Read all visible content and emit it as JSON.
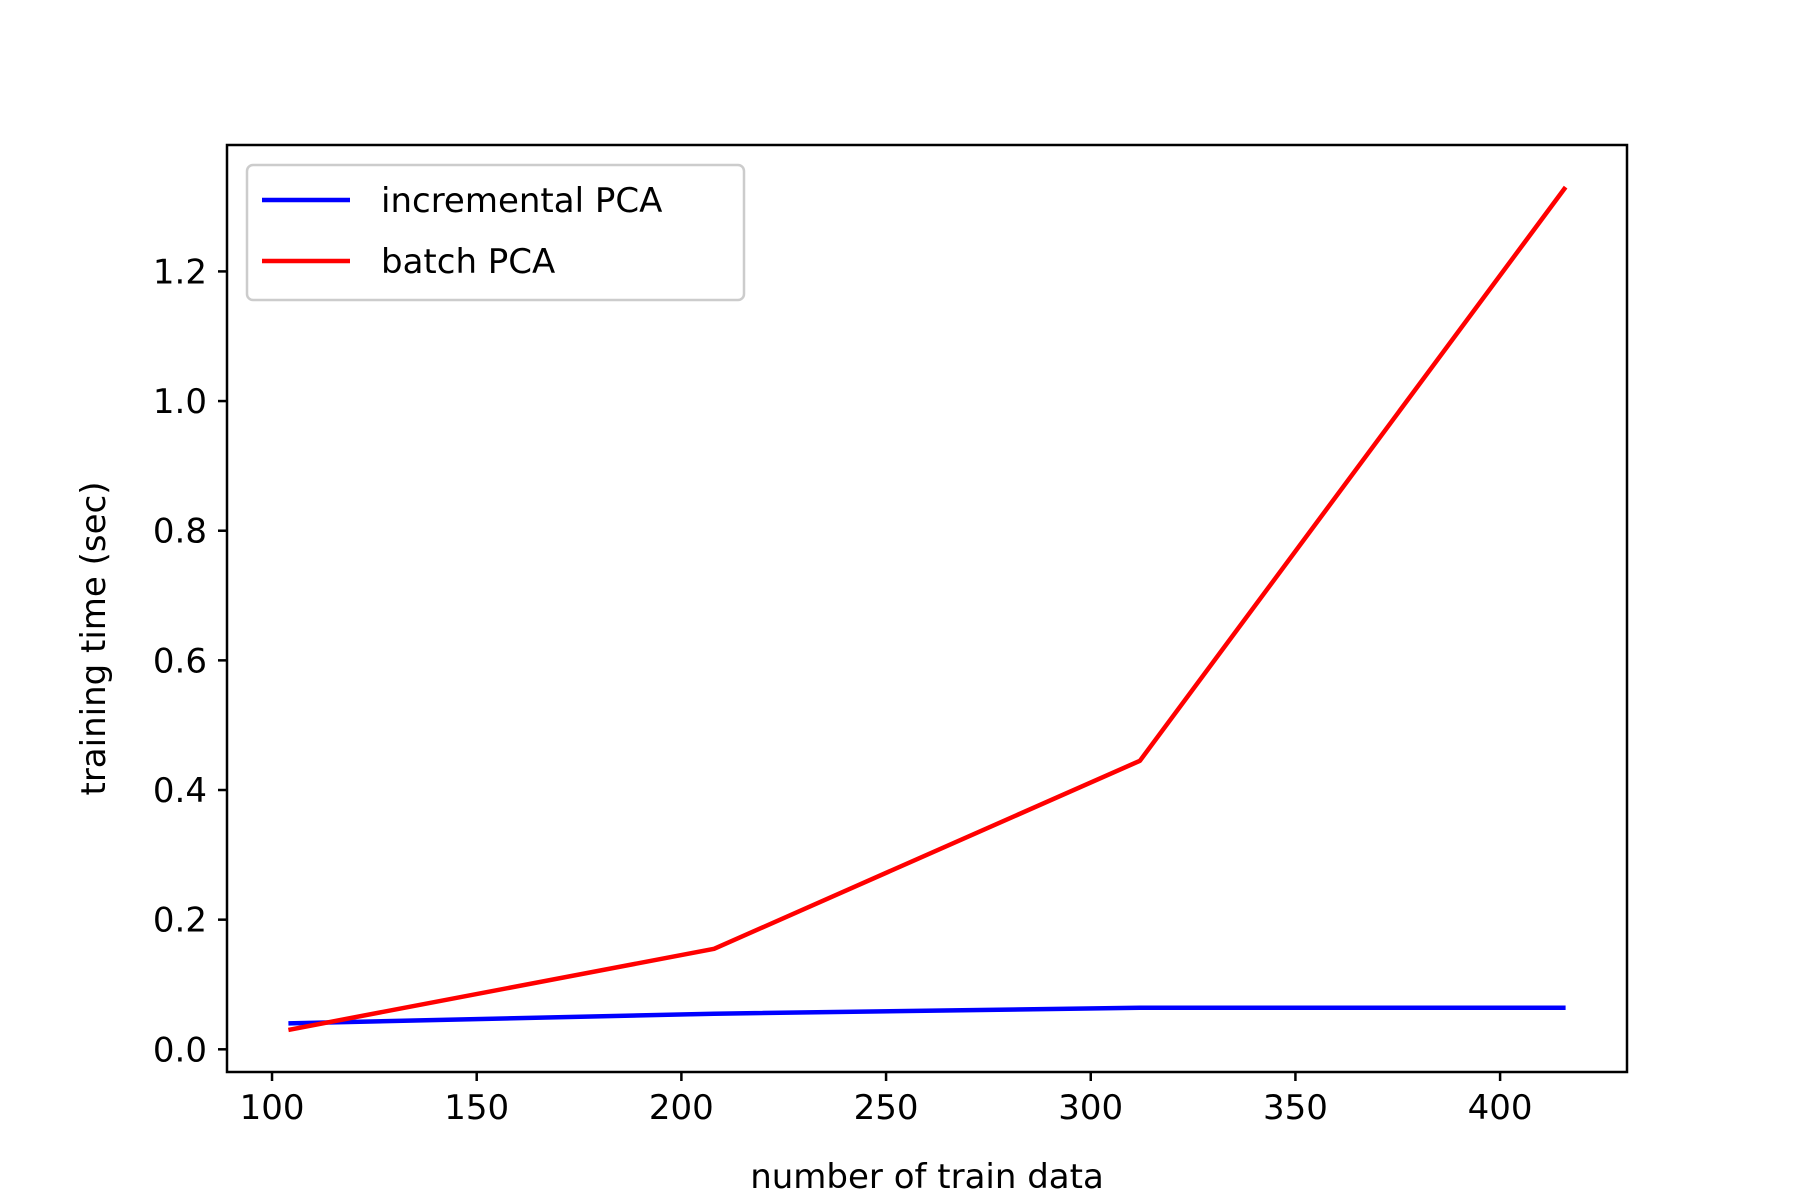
{
  "chart_data": {
    "type": "line",
    "title": "",
    "xlabel": "number of train data",
    "ylabel": "training time (sec)",
    "xlim": [
      89,
      431
    ],
    "ylim": [
      -0.035,
      1.395
    ],
    "xticks": [
      {
        "value": 100,
        "label": "100"
      },
      {
        "value": 150,
        "label": "150"
      },
      {
        "value": 200,
        "label": "200"
      },
      {
        "value": 250,
        "label": "250"
      },
      {
        "value": 300,
        "label": "300"
      },
      {
        "value": 350,
        "label": "350"
      },
      {
        "value": 400,
        "label": "400"
      }
    ],
    "yticks": [
      {
        "value": 0.0,
        "label": "0.0"
      },
      {
        "value": 0.2,
        "label": "0.2"
      },
      {
        "value": 0.4,
        "label": "0.4"
      },
      {
        "value": 0.6,
        "label": "0.6"
      },
      {
        "value": 0.8,
        "label": "0.8"
      },
      {
        "value": 1.0,
        "label": "1.0"
      },
      {
        "value": 1.2,
        "label": "1.2"
      }
    ],
    "grid": false,
    "legend_position": "upper-left",
    "series": [
      {
        "name": "incremental PCA",
        "color": "#0000ff",
        "x": [
          104,
          208,
          312,
          416
        ],
        "y": [
          0.04,
          0.055,
          0.064,
          0.064
        ]
      },
      {
        "name": "batch PCA",
        "color": "#ff0000",
        "x": [
          104,
          208,
          312,
          416
        ],
        "y": [
          0.03,
          0.155,
          0.445,
          1.33
        ]
      }
    ]
  }
}
